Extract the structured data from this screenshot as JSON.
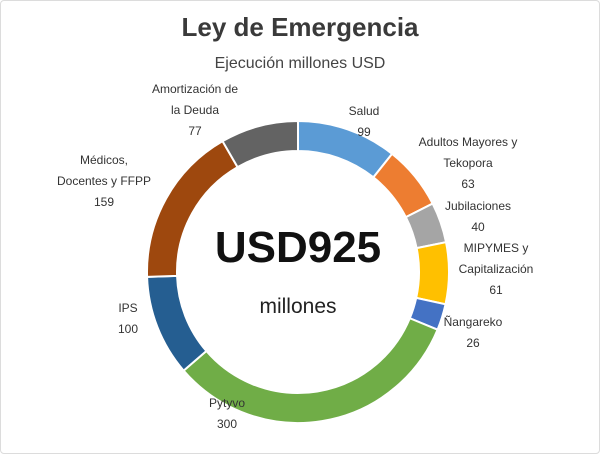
{
  "chart_data": {
    "type": "pie",
    "title": "Ley de Emergencia",
    "subtitle": "Ejecución millones USD",
    "center_value": "USD925",
    "center_unit": "millones",
    "slices": [
      {
        "name": [
          "Salud"
        ],
        "value": 99,
        "color": "#5b9bd5"
      },
      {
        "name": [
          "Adultos Mayores y",
          "Tekopora"
        ],
        "value": 63,
        "color": "#ed7d31"
      },
      {
        "name": [
          "Jubilaciones"
        ],
        "value": 40,
        "color": "#a5a5a5"
      },
      {
        "name": [
          "MIPYMES y",
          "Capitalización"
        ],
        "value": 61,
        "color": "#ffc000"
      },
      {
        "name": [
          "Ñangareko"
        ],
        "value": 26,
        "color": "#4472c4"
      },
      {
        "name": [
          "Pytyvo"
        ],
        "value": 300,
        "color": "#70ad47"
      },
      {
        "name": [
          "IPS"
        ],
        "value": 100,
        "color": "#255e91"
      },
      {
        "name": [
          "Médicos,",
          "Docentes y FFPP"
        ],
        "value": 159,
        "color": "#9e480e"
      },
      {
        "name": [
          "Amortización de",
          "la Deuda"
        ],
        "value": 77,
        "color": "#636363"
      }
    ]
  }
}
